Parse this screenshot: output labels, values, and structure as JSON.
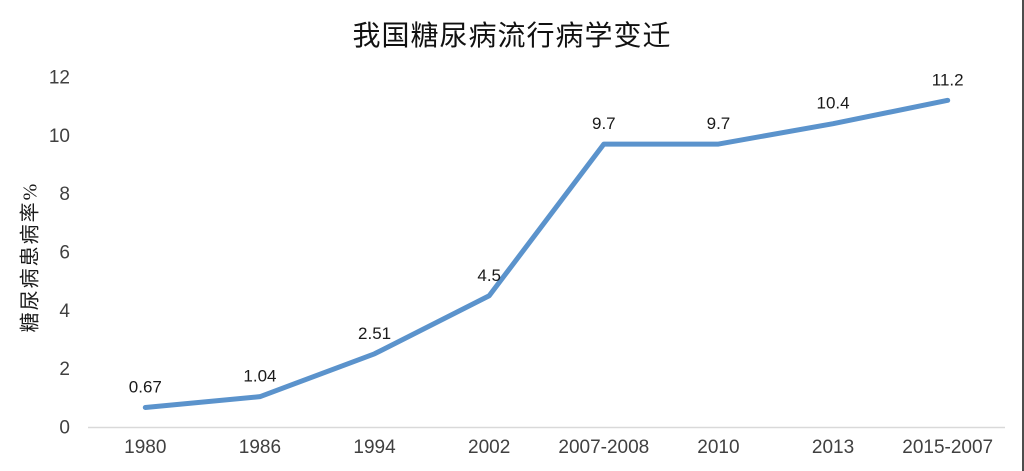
{
  "chart": {
    "title": "我国糖尿病流行病学变迁",
    "y_axis_label": "糖尿病患病率%",
    "line_color": "#5B93CC",
    "axis_line_color": "#D9D9D9",
    "tick_color": "#404040",
    "data_label_color": "#1a1a1a",
    "background_color": "#ffffff"
  },
  "chart_data": {
    "type": "line",
    "title": "我国糖尿病流行病学变迁",
    "xlabel": "",
    "ylabel": "糖尿病患病率%",
    "categories": [
      "1980",
      "1986",
      "1994",
      "2002",
      "2007-2008",
      "2010",
      "2013",
      "2015-2007"
    ],
    "values": [
      0.67,
      1.04,
      2.51,
      4.5,
      9.7,
      9.7,
      10.4,
      11.2
    ],
    "data_labels": [
      "0.67",
      "1.04",
      "2.51",
      "4.5",
      "9.7",
      "9.7",
      "10.4",
      "11.2"
    ],
    "ylim": [
      0,
      12
    ],
    "y_ticks": [
      0,
      2,
      4,
      6,
      8,
      10,
      12
    ],
    "grid": false,
    "legend": "none",
    "series_name": "糖尿病患病率%"
  }
}
